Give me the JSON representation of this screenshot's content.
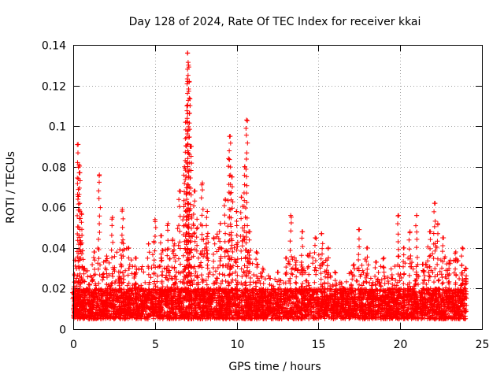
{
  "chart_data": {
    "type": "scatter",
    "title": "Day 128 of 2024, Rate Of TEC Index for receiver kkai",
    "xlabel": "GPS time / hours",
    "ylabel": "ROTI / TECUs",
    "xlim": [
      0,
      25
    ],
    "ylim": [
      0,
      0.14
    ],
    "x_ticks": [
      0,
      5,
      10,
      15,
      20,
      25
    ],
    "y_ticks": [
      0,
      0.02,
      0.04,
      0.06,
      0.08,
      0.1,
      0.12,
      0.14
    ],
    "x_tick_labels": [
      "0",
      "5",
      "10",
      "15",
      "20",
      "25"
    ],
    "y_tick_labels": [
      "0",
      "0.02",
      "0.04",
      "0.06",
      "0.08",
      "0.1",
      "0.12",
      "0.14"
    ],
    "grid": true,
    "marker": "+",
    "color": "#ff0000",
    "series": [
      {
        "name": "ROTI",
        "x": [
          0.0,
          0.1,
          0.2,
          0.3,
          0.35,
          0.4,
          0.5,
          0.7,
          1.0,
          1.3,
          1.6,
          2.0,
          2.4,
          2.8,
          3.0,
          3.4,
          3.8,
          4.2,
          4.6,
          5.0,
          5.4,
          5.8,
          6.2,
          6.5,
          6.8,
          6.9,
          6.95,
          7.0,
          7.05,
          7.1,
          7.2,
          7.4,
          7.6,
          7.9,
          8.2,
          8.6,
          9.0,
          9.3,
          9.5,
          9.6,
          9.7,
          10.0,
          10.3,
          10.5,
          10.6,
          10.8,
          11.2,
          11.6,
          12.0,
          12.5,
          13.0,
          13.3,
          13.6,
          14.0,
          14.4,
          14.8,
          15.2,
          15.6,
          16.0,
          16.5,
          17.0,
          17.5,
          18.0,
          18.5,
          19.0,
          19.5,
          19.9,
          20.2,
          20.6,
          21.0,
          21.4,
          21.8,
          22.1,
          22.3,
          22.6,
          23.0,
          23.4,
          23.8,
          24.0
        ],
        "y": [
          0.018,
          0.034,
          0.025,
          0.091,
          0.081,
          0.077,
          0.057,
          0.03,
          0.022,
          0.038,
          0.076,
          0.034,
          0.055,
          0.026,
          0.059,
          0.04,
          0.035,
          0.02,
          0.042,
          0.054,
          0.046,
          0.052,
          0.042,
          0.068,
          0.08,
          0.102,
          0.11,
          0.136,
          0.13,
          0.122,
          0.09,
          0.068,
          0.05,
          0.072,
          0.058,
          0.045,
          0.052,
          0.064,
          0.084,
          0.095,
          0.075,
          0.058,
          0.065,
          0.08,
          0.103,
          0.048,
          0.038,
          0.03,
          0.025,
          0.028,
          0.035,
          0.056,
          0.03,
          0.048,
          0.036,
          0.045,
          0.047,
          0.04,
          0.028,
          0.02,
          0.022,
          0.049,
          0.04,
          0.033,
          0.035,
          0.025,
          0.056,
          0.04,
          0.048,
          0.056,
          0.032,
          0.048,
          0.062,
          0.052,
          0.045,
          0.033,
          0.038,
          0.04,
          0.03
        ],
        "baseline_range": [
          0.005,
          0.02
        ],
        "upper_envelope_x": [
          0.0,
          0.5,
          1.0,
          1.5,
          2.0,
          2.5,
          3.0,
          3.5,
          4.0,
          4.5,
          5.0,
          5.5,
          6.0,
          6.5,
          7.0,
          7.5,
          8.0,
          8.5,
          9.0,
          9.5,
          10.0,
          10.5,
          11.0,
          11.5,
          12.0,
          12.5,
          13.0,
          13.5,
          14.0,
          14.5,
          15.0,
          15.5,
          16.0,
          16.5,
          17.0,
          17.5,
          18.0,
          18.5,
          19.0,
          19.5,
          20.0,
          20.5,
          21.0,
          21.5,
          22.0,
          22.5,
          23.0,
          23.5,
          24.0
        ],
        "upper_envelope_y": [
          0.033,
          0.045,
          0.034,
          0.04,
          0.036,
          0.042,
          0.045,
          0.036,
          0.032,
          0.038,
          0.045,
          0.04,
          0.042,
          0.055,
          0.06,
          0.058,
          0.05,
          0.045,
          0.048,
          0.05,
          0.042,
          0.05,
          0.038,
          0.03,
          0.026,
          0.028,
          0.03,
          0.04,
          0.034,
          0.038,
          0.042,
          0.035,
          0.026,
          0.024,
          0.03,
          0.036,
          0.034,
          0.03,
          0.032,
          0.03,
          0.038,
          0.036,
          0.032,
          0.04,
          0.045,
          0.038,
          0.034,
          0.036,
          0.03
        ]
      }
    ]
  }
}
